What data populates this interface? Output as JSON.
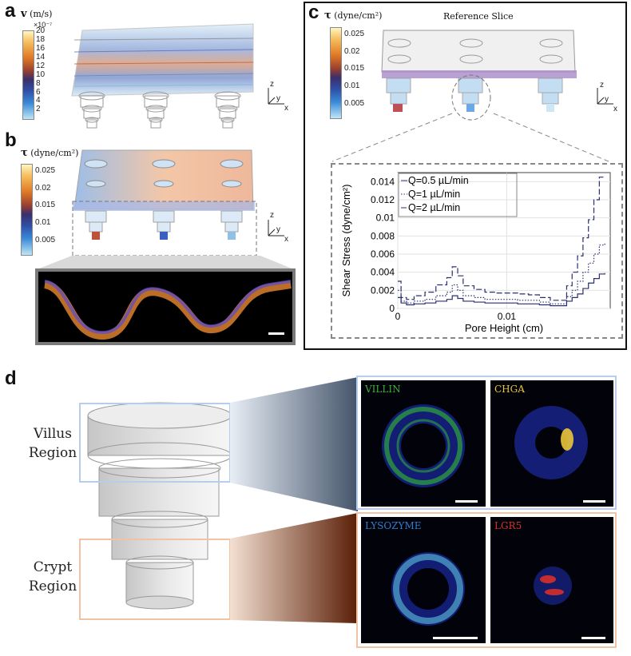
{
  "panels": {
    "a": {
      "letter": "a",
      "cbar": {
        "symbol": "v",
        "unit": "(m/s)",
        "multiplier": "×10⁻⁷",
        "ticks": [
          "20",
          "18",
          "16",
          "14",
          "12",
          "10",
          "8",
          "6",
          "4",
          "2"
        ]
      }
    },
    "b": {
      "letter": "b",
      "cbar": {
        "symbol": "τ",
        "unit": "(dyne/cm²)",
        "ticks": [
          "0.025",
          "0.02",
          "0.015",
          "0.01",
          "0.005"
        ]
      }
    },
    "c": {
      "letter": "c",
      "title": "Reference Slice",
      "cbar": {
        "symbol": "τ",
        "unit": "(dyne/cm²)",
        "ticks": [
          "0.025",
          "0.02",
          "0.015",
          "0.01",
          "0.005"
        ]
      }
    },
    "d": {
      "letter": "d",
      "villus_region": "Villus\nRegion",
      "crypt_region": "Crypt\nRegion",
      "stains": [
        "VILLIN",
        "CHGA",
        "LYSOZYME",
        "LGR5"
      ],
      "stain_colors": [
        "#3fae3a",
        "#e8c53a",
        "#2e7fd0",
        "#d8302a"
      ]
    }
  },
  "axes_glyphs": {
    "z": "z",
    "y": "y",
    "x": "x"
  },
  "chart_data": {
    "type": "line",
    "xlabel": "Pore Height (cm)",
    "ylabel": "Shear Stress (dyne/cm²)",
    "xlim": [
      0,
      0.0195
    ],
    "ylim": [
      0,
      0.015
    ],
    "x_ticks": [
      "0",
      "0.01"
    ],
    "y_ticks": [
      "0",
      "0.002",
      "0.004",
      "0.006",
      "0.008",
      "0.01",
      "0.012",
      "0.014"
    ],
    "grid": true,
    "legend_position": "top-left",
    "series": [
      {
        "name": "Q=0.5 µL/min",
        "style": "solid",
        "x": [
          0,
          0.0003,
          0.0008,
          0.0015,
          0.0025,
          0.0035,
          0.0045,
          0.005,
          0.0055,
          0.006,
          0.007,
          0.008,
          0.009,
          0.01,
          0.011,
          0.012,
          0.013,
          0.014,
          0.0148,
          0.0155,
          0.016,
          0.0165,
          0.017,
          0.0175,
          0.018,
          0.0185,
          0.019
        ],
        "y": [
          0.0012,
          0.0006,
          0.0004,
          0.0005,
          0.0006,
          0.0008,
          0.001,
          0.0014,
          0.0011,
          0.0008,
          0.0007,
          0.0006,
          0.0006,
          0.0006,
          0.0005,
          0.0005,
          0.0004,
          0.0003,
          0.0003,
          0.0008,
          0.0012,
          0.0016,
          0.0022,
          0.0028,
          0.0033,
          0.0038,
          0.0039
        ]
      },
      {
        "name": "Q=1 µL/min",
        "style": "dotted",
        "x": [
          0,
          0.0003,
          0.0008,
          0.0015,
          0.0025,
          0.0035,
          0.0045,
          0.005,
          0.0055,
          0.006,
          0.007,
          0.008,
          0.009,
          0.01,
          0.011,
          0.012,
          0.013,
          0.014,
          0.0148,
          0.0155,
          0.016,
          0.0165,
          0.017,
          0.0175,
          0.018,
          0.0185,
          0.019
        ],
        "y": [
          0.002,
          0.0008,
          0.0006,
          0.0008,
          0.001,
          0.0014,
          0.0018,
          0.0026,
          0.002,
          0.0014,
          0.0012,
          0.001,
          0.001,
          0.001,
          0.0009,
          0.0009,
          0.0007,
          0.0005,
          0.0005,
          0.0013,
          0.002,
          0.003,
          0.004,
          0.005,
          0.006,
          0.007,
          0.0073
        ]
      },
      {
        "name": "Q=2 µL/min",
        "style": "dashed",
        "x": [
          0,
          0.0003,
          0.0008,
          0.0015,
          0.0025,
          0.0035,
          0.0045,
          0.005,
          0.0055,
          0.006,
          0.007,
          0.008,
          0.009,
          0.01,
          0.011,
          0.012,
          0.013,
          0.014,
          0.0148,
          0.0155,
          0.016,
          0.0165,
          0.017,
          0.0175,
          0.018,
          0.0185,
          0.019
        ],
        "y": [
          0.003,
          0.0012,
          0.001,
          0.0014,
          0.0018,
          0.0026,
          0.0034,
          0.0046,
          0.0036,
          0.0025,
          0.0021,
          0.0018,
          0.0017,
          0.0017,
          0.0016,
          0.0015,
          0.0012,
          0.0009,
          0.0009,
          0.0025,
          0.004,
          0.0058,
          0.0078,
          0.0098,
          0.012,
          0.0145,
          0.0146
        ]
      }
    ]
  }
}
